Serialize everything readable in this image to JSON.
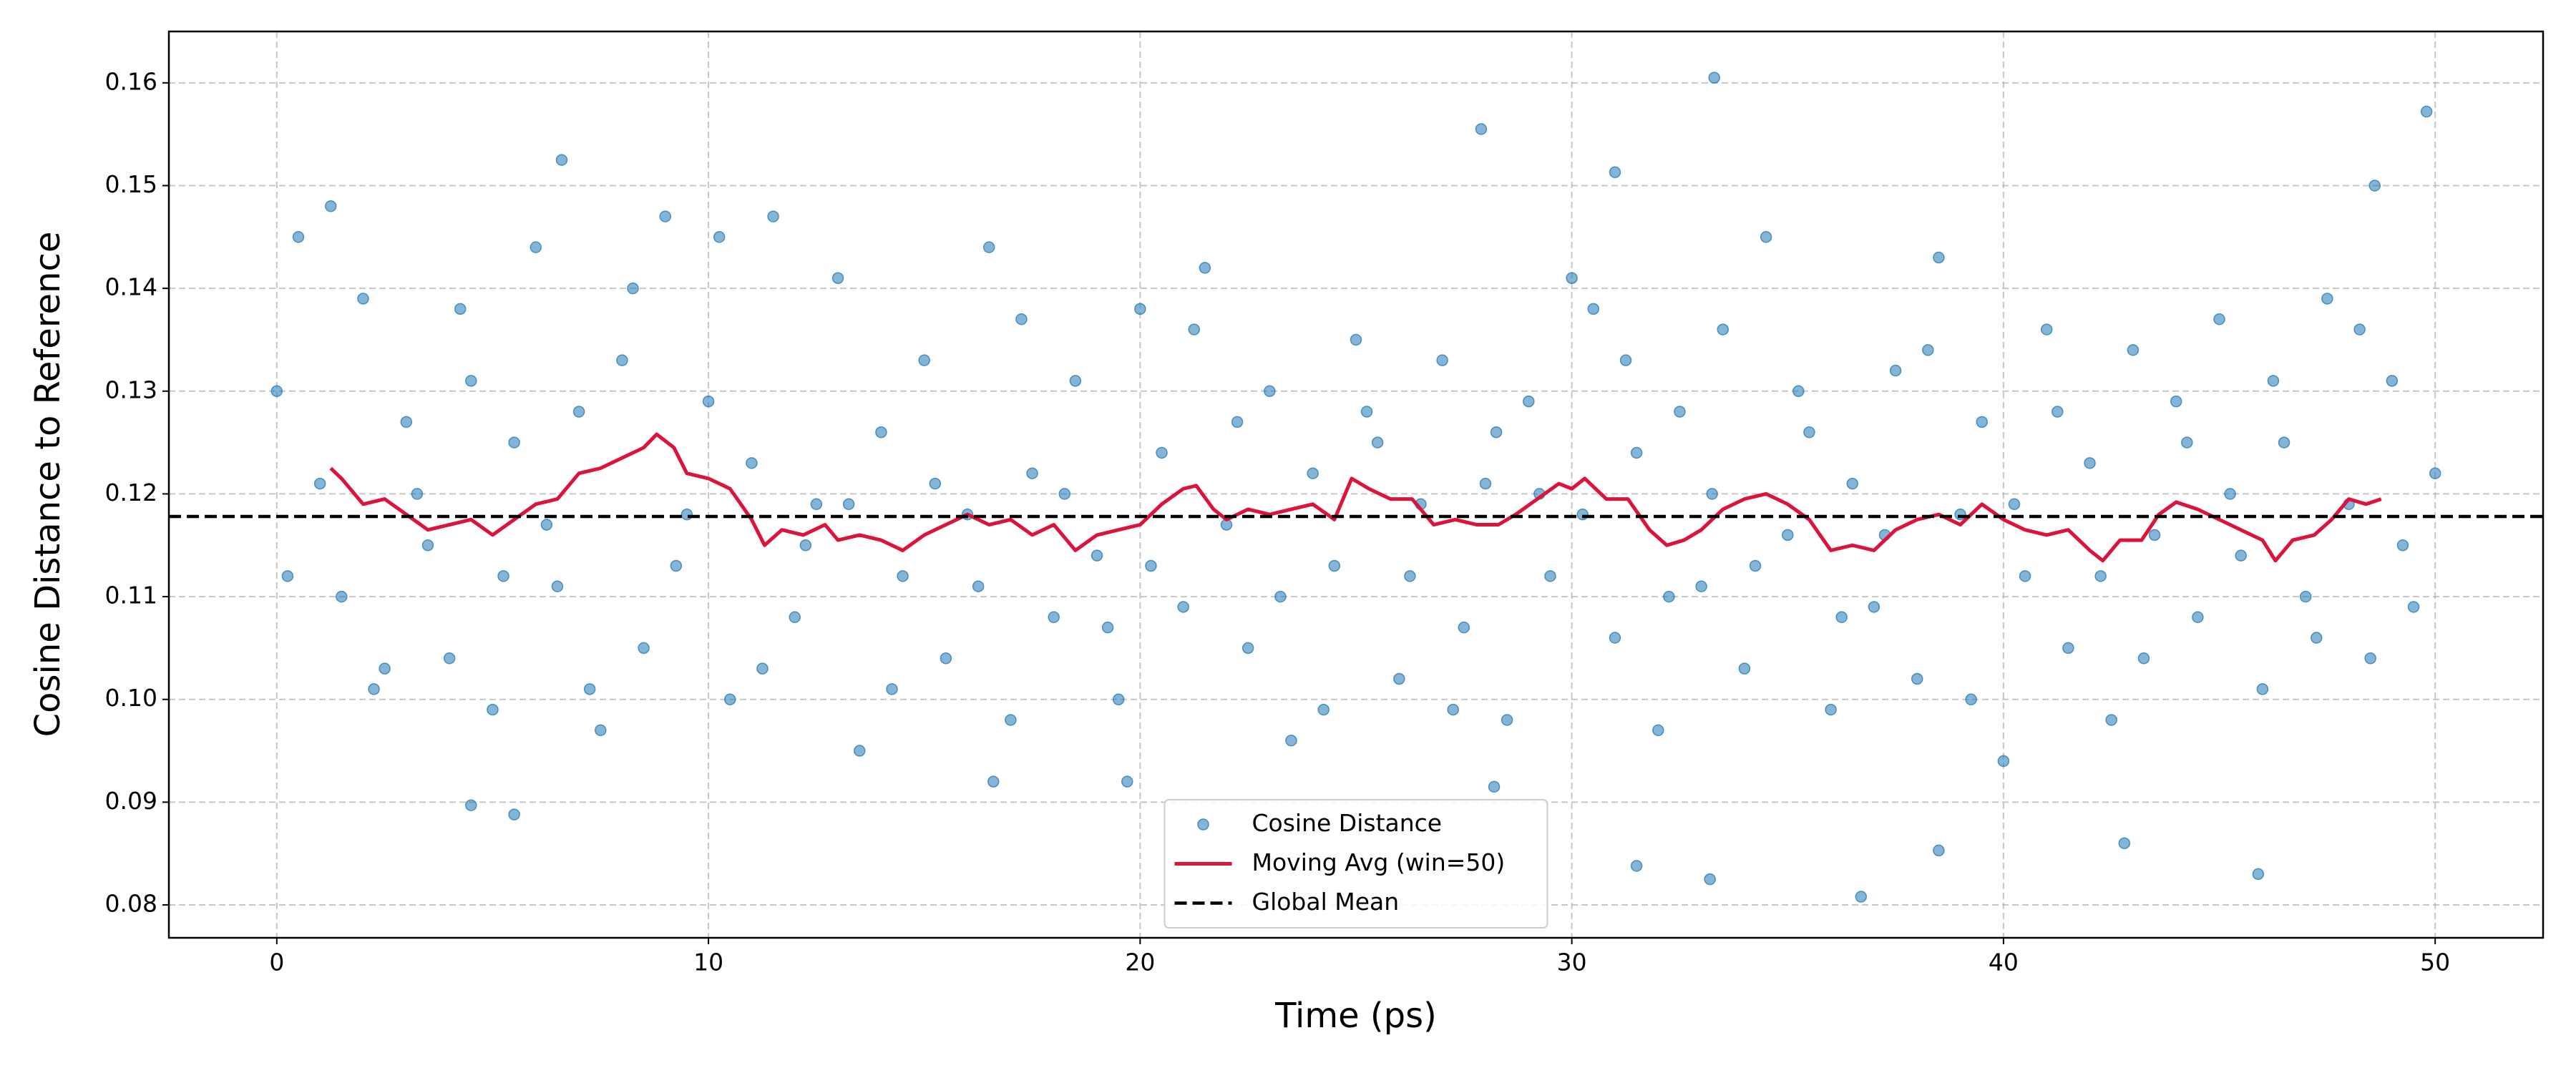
{
  "chart_data": {
    "type": "scatter",
    "xlabel": "Time (ps)",
    "ylabel": "Cosine Distance to Reference",
    "xlim": [
      -2.5,
      52.5
    ],
    "ylim": [
      0.0768,
      0.165
    ],
    "xticks": [
      0,
      10,
      20,
      30,
      40,
      50
    ],
    "yticks": [
      0.08,
      0.09,
      {
        "value": 0.1,
        "label": "0.10"
      },
      0.11,
      0.12,
      0.13,
      0.14,
      0.15,
      0.16
    ],
    "grid": true,
    "legend": "lower center",
    "series": [
      {
        "name": "Cosine Distance",
        "type": "scatter",
        "color": "#1f77b4",
        "x": [
          0,
          0.5,
          1,
          1.5,
          2,
          2.5,
          3,
          3.5,
          4,
          4.5,
          5,
          5.5,
          6,
          6.5,
          7,
          7.5,
          8,
          8.5,
          9,
          9.5,
          10,
          10.5,
          11,
          11.5,
          12,
          12.5,
          13,
          13.5,
          14,
          14.5,
          15,
          15.5,
          16,
          16.5,
          17,
          17.5,
          18,
          18.5,
          19,
          19.5,
          20,
          20.5,
          21,
          21.5,
          22,
          22.5,
          23,
          23.5,
          24,
          24.5,
          25,
          25.5,
          26,
          26.5,
          27,
          27.5,
          28,
          28.5,
          29,
          29.5,
          30,
          30.5,
          31,
          31.5,
          32,
          32.5,
          33,
          33.5,
          34,
          34.5,
          35,
          35.5,
          36,
          36.5,
          37,
          37.5,
          38,
          38.5,
          39,
          39.5,
          40,
          40.5,
          41,
          41.5,
          42,
          42.5,
          43,
          43.5,
          44,
          44.5,
          45,
          45.5,
          46,
          46.5,
          47,
          47.5,
          48,
          48.5,
          49,
          49.5,
          50,
          0.25,
          1.25,
          2.25,
          3.25,
          4.25,
          5.25,
          6.25,
          7.25,
          8.25,
          9.25,
          10.25,
          11.25,
          12.25,
          13.25,
          14.25,
          15.25,
          16.25,
          17.25,
          18.25,
          19.25,
          20.25,
          21.25,
          22.25,
          23.25,
          24.25,
          25.25,
          26.25,
          27.25,
          28.25,
          29.25,
          30.25,
          31.25,
          32.25,
          33.25,
          34.25,
          35.25,
          36.25,
          37.25,
          38.25,
          39.25,
          40.25,
          41.25,
          42.25,
          43.25,
          44.25,
          45.25,
          46.25,
          47.25,
          48.25,
          49.25,
          33.3,
          27.9,
          49.8,
          6.6,
          31,
          48.6,
          36.7,
          33.2,
          45.9,
          31.5,
          38.5,
          42.8,
          4.5,
          5.5,
          28.2,
          16.6,
          19.7
        ],
        "values": [
          0.13,
          0.145,
          0.121,
          0.11,
          0.139,
          0.103,
          0.127,
          0.115,
          0.104,
          0.131,
          0.099,
          0.125,
          0.144,
          0.111,
          0.128,
          0.097,
          0.133,
          0.105,
          0.147,
          0.118,
          0.129,
          0.1,
          0.123,
          0.147,
          0.108,
          0.119,
          0.141,
          0.095,
          0.126,
          0.112,
          0.133,
          0.104,
          0.118,
          0.144,
          0.098,
          0.122,
          0.108,
          0.131,
          0.114,
          0.1,
          0.138,
          0.124,
          0.109,
          0.142,
          0.117,
          0.105,
          0.13,
          0.096,
          0.122,
          0.113,
          0.135,
          0.125,
          0.102,
          0.119,
          0.133,
          0.107,
          0.121,
          0.098,
          0.129,
          0.112,
          0.141,
          0.138,
          0.106,
          0.124,
          0.097,
          0.128,
          0.111,
          0.136,
          0.103,
          0.145,
          0.116,
          0.126,
          0.099,
          0.121,
          0.109,
          0.132,
          0.102,
          0.143,
          0.118,
          0.127,
          0.094,
          0.112,
          0.136,
          0.105,
          0.123,
          0.098,
          0.134,
          0.116,
          0.129,
          0.108,
          0.137,
          0.114,
          0.101,
          0.125,
          0.11,
          0.139,
          0.119,
          0.104,
          0.131,
          0.109,
          0.122,
          0.112,
          0.148,
          0.101,
          0.12,
          0.138,
          0.112,
          0.117,
          0.101,
          0.14,
          0.113,
          0.145,
          0.103,
          0.115,
          0.119,
          0.101,
          0.121,
          0.111,
          0.137,
          0.12,
          0.107,
          0.113,
          0.136,
          0.127,
          0.11,
          0.099,
          0.128,
          0.112,
          0.099,
          0.126,
          0.12,
          0.118,
          0.133,
          0.11,
          0.12,
          0.113,
          0.13,
          0.108,
          0.116,
          0.134,
          0.1,
          0.119,
          0.128,
          0.112,
          0.104,
          0.125,
          0.12,
          0.131,
          0.106,
          0.136,
          0.115,
          0.1605,
          0.1555,
          0.1572,
          0.1525,
          0.1513,
          0.15,
          0.0808,
          0.0825,
          0.083,
          0.0838,
          0.0853,
          0.086,
          0.0897,
          0.0888,
          0.0915,
          0.092,
          0.092
        ]
      },
      {
        "name": "Moving Avg (win=50)",
        "type": "line",
        "color": "#dc143c",
        "x": [
          1.25,
          1.5,
          2,
          2.5,
          3,
          3.5,
          4,
          4.5,
          5,
          5.5,
          6,
          6.5,
          7,
          7.5,
          8,
          8.5,
          8.8,
          9.2,
          9.5,
          10,
          10.5,
          11,
          11.3,
          11.7,
          12.2,
          12.7,
          13,
          13.5,
          14,
          14.5,
          15,
          15.5,
          16,
          16.5,
          17,
          17.5,
          18,
          18.5,
          19,
          19.5,
          20,
          20.5,
          21,
          21.3,
          21.7,
          22,
          22.5,
          23,
          23.5,
          24,
          24.5,
          24.9,
          25.3,
          25.8,
          26.3,
          26.8,
          27.3,
          27.8,
          28.3,
          28.7,
          29.2,
          29.7,
          30,
          30.3,
          30.8,
          31.3,
          31.8,
          32.2,
          32.6,
          33,
          33.5,
          34,
          34.5,
          35,
          35.5,
          36,
          36.5,
          37,
          37.5,
          38,
          38.5,
          39,
          39.5,
          40,
          40.5,
          41,
          41.5,
          42,
          42.3,
          42.7,
          43.2,
          43.6,
          44,
          44.5,
          45,
          45.5,
          46,
          46.3,
          46.7,
          47.2,
          47.6,
          48,
          48.4,
          48.75
        ],
        "values": [
          0.1225,
          0.1215,
          0.119,
          0.1195,
          0.118,
          0.1165,
          0.117,
          0.1175,
          0.116,
          0.1175,
          0.119,
          0.1195,
          0.122,
          0.1225,
          0.1235,
          0.1245,
          0.1258,
          0.1245,
          0.122,
          0.1215,
          0.1205,
          0.1175,
          0.115,
          0.1165,
          0.116,
          0.117,
          0.1155,
          0.116,
          0.1155,
          0.1145,
          0.116,
          0.117,
          0.118,
          0.117,
          0.1175,
          0.116,
          0.117,
          0.1145,
          0.116,
          0.1165,
          0.117,
          0.119,
          0.1205,
          0.1208,
          0.1185,
          0.1175,
          0.1185,
          0.118,
          0.1185,
          0.119,
          0.1175,
          0.1215,
          0.1205,
          0.1195,
          0.1195,
          0.117,
          0.1175,
          0.117,
          0.117,
          0.118,
          0.1195,
          0.121,
          0.1205,
          0.1215,
          0.1195,
          0.1195,
          0.1165,
          0.115,
          0.1155,
          0.1165,
          0.1185,
          0.1195,
          0.12,
          0.119,
          0.1175,
          0.1145,
          0.115,
          0.1145,
          0.1165,
          0.1175,
          0.118,
          0.117,
          0.119,
          0.1175,
          0.1165,
          0.116,
          0.1165,
          0.1145,
          0.1135,
          0.1155,
          0.1155,
          0.118,
          0.1192,
          0.1185,
          0.1175,
          0.1165,
          0.1155,
          0.1135,
          0.1155,
          0.116,
          0.1175,
          0.1195,
          0.119,
          0.1195
        ]
      },
      {
        "name": "Global Mean",
        "type": "hline",
        "color": "#000000",
        "value": 0.1178
      }
    ]
  }
}
